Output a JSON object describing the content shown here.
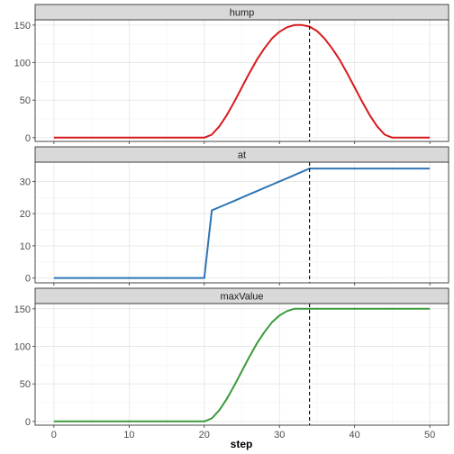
{
  "chart_data": {
    "type": "line",
    "xlabel": "step",
    "x_range": [
      0,
      50
    ],
    "x_ticks": [
      0,
      10,
      20,
      30,
      40,
      50
    ],
    "vline_x": 34,
    "grid": true,
    "legend": "none",
    "panels": [
      {
        "strip_label": "hump",
        "color": "#d7191c",
        "ylim": [
          -5,
          157
        ],
        "y_ticks": [
          0,
          50,
          100,
          150
        ],
        "x": [
          0,
          1,
          2,
          3,
          4,
          5,
          6,
          7,
          8,
          9,
          10,
          11,
          12,
          13,
          14,
          15,
          16,
          17,
          18,
          19,
          20,
          21,
          22,
          23,
          24,
          25,
          26,
          27,
          28,
          29,
          30,
          31,
          32,
          33,
          34,
          35,
          36,
          37,
          38,
          39,
          40,
          41,
          42,
          43,
          44,
          45,
          46,
          47,
          48,
          49,
          50
        ],
        "values": [
          0,
          0,
          0,
          0,
          0,
          0,
          0,
          0,
          0,
          0,
          0,
          0,
          0,
          0,
          0,
          0,
          0,
          0,
          0,
          0,
          0,
          4,
          15,
          30,
          48,
          67,
          86,
          104,
          119,
          132,
          141,
          147,
          150,
          150,
          148,
          142,
          132,
          119,
          104,
          86,
          67,
          48,
          30,
          15,
          4,
          0,
          0,
          0,
          0,
          0,
          0
        ]
      },
      {
        "strip_label": "at",
        "color": "#2f75b5",
        "ylim": [
          -1.5,
          36
        ],
        "y_ticks": [
          0,
          10,
          20,
          30
        ],
        "x": [
          0,
          1,
          2,
          3,
          4,
          5,
          6,
          7,
          8,
          9,
          10,
          11,
          12,
          13,
          14,
          15,
          16,
          17,
          18,
          19,
          20,
          21,
          22,
          23,
          24,
          25,
          26,
          27,
          28,
          29,
          30,
          31,
          32,
          33,
          34,
          35,
          36,
          37,
          38,
          39,
          40,
          41,
          42,
          43,
          44,
          45,
          46,
          47,
          48,
          49,
          50
        ],
        "values": [
          0,
          0,
          0,
          0,
          0,
          0,
          0,
          0,
          0,
          0,
          0,
          0,
          0,
          0,
          0,
          0,
          0,
          0,
          0,
          0,
          0,
          21,
          22,
          23,
          24,
          25,
          26,
          27,
          28,
          29,
          30,
          31,
          32,
          33,
          34,
          34,
          34,
          34,
          34,
          34,
          34,
          34,
          34,
          34,
          34,
          34,
          34,
          34,
          34,
          34,
          34
        ]
      },
      {
        "strip_label": "maxValue",
        "color": "#3a9a3a",
        "ylim": [
          -5,
          157
        ],
        "y_ticks": [
          0,
          50,
          100,
          150
        ],
        "x": [
          0,
          1,
          2,
          3,
          4,
          5,
          6,
          7,
          8,
          9,
          10,
          11,
          12,
          13,
          14,
          15,
          16,
          17,
          18,
          19,
          20,
          21,
          22,
          23,
          24,
          25,
          26,
          27,
          28,
          29,
          30,
          31,
          32,
          33,
          34,
          35,
          36,
          37,
          38,
          39,
          40,
          41,
          42,
          43,
          44,
          45,
          46,
          47,
          48,
          49,
          50
        ],
        "values": [
          0,
          0,
          0,
          0,
          0,
          0,
          0,
          0,
          0,
          0,
          0,
          0,
          0,
          0,
          0,
          0,
          0,
          0,
          0,
          0,
          0,
          4,
          15,
          30,
          48,
          67,
          86,
          104,
          119,
          132,
          141,
          147,
          150,
          150,
          150,
          150,
          150,
          150,
          150,
          150,
          150,
          150,
          150,
          150,
          150,
          150,
          150,
          150,
          150,
          150,
          150
        ]
      }
    ]
  }
}
